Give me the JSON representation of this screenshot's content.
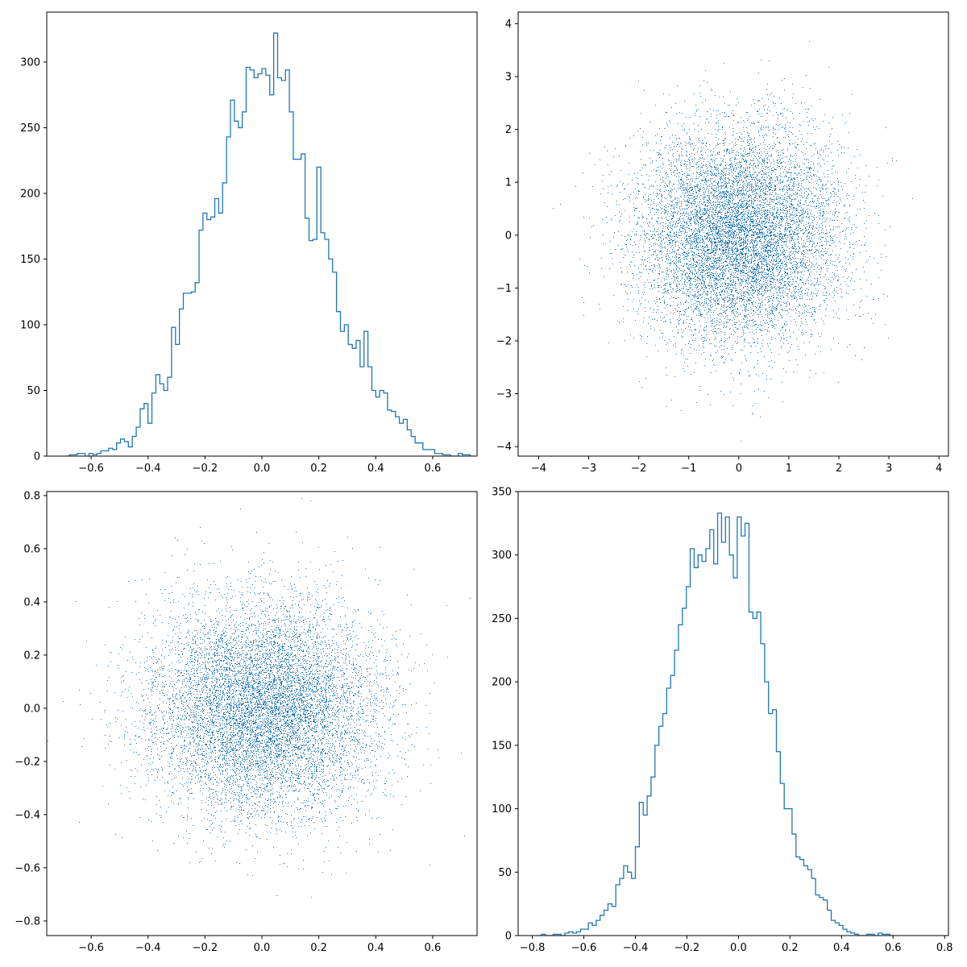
{
  "colors": {
    "line": "#1f77b4",
    "axes": "#000000",
    "background": "#ffffff"
  },
  "chart_data": [
    {
      "type": "histogram",
      "histtype": "step",
      "title": "",
      "xlabel": "",
      "ylabel": "",
      "xlim": [
        -0.756,
        0.756
      ],
      "ylim": [
        0,
        338
      ],
      "xticks": [
        -0.6,
        -0.4,
        -0.2,
        0.0,
        0.2,
        0.4,
        0.6
      ],
      "xtick_labels": [
        "−0.6",
        "−0.4",
        "−0.2",
        "0.0",
        "0.2",
        "0.4",
        "0.6"
      ],
      "yticks": [
        0,
        50,
        100,
        150,
        200,
        250,
        300
      ],
      "ytick_labels": [
        "0",
        "50",
        "100",
        "150",
        "200",
        "250",
        "300"
      ],
      "bin_start": -0.69,
      "bin_width": 0.0138,
      "counts": [
        0,
        1,
        1,
        2,
        2,
        0,
        2,
        1,
        2,
        4,
        4,
        6,
        5,
        10,
        13,
        11,
        7,
        15,
        22,
        36,
        40,
        25,
        48,
        62,
        55,
        50,
        60,
        98,
        85,
        112,
        124,
        124,
        125,
        132,
        172,
        185,
        180,
        182,
        196,
        185,
        208,
        243,
        271,
        255,
        250,
        262,
        296,
        294,
        288,
        291,
        295,
        290,
        275,
        322,
        288,
        286,
        294,
        262,
        226,
        226,
        230,
        181,
        164,
        165,
        220,
        170,
        165,
        150,
        140,
        110,
        95,
        100,
        85,
        82,
        88,
        68,
        95,
        68,
        50,
        45,
        50,
        48,
        35,
        34,
        30,
        25,
        28,
        20,
        15,
        10,
        10,
        5,
        5,
        5,
        2,
        2,
        1,
        1,
        0,
        0,
        2,
        1,
        1,
        0
      ]
    },
    {
      "type": "scatter",
      "marker": "pixel",
      "title": "",
      "xlabel": "",
      "ylabel": "",
      "n_points": 10000,
      "distribution": {
        "x": "normal(0, 1)",
        "y": "normal(0, 1)"
      },
      "xlim": [
        -4.41,
        4.19
      ],
      "ylim": [
        -4.18,
        4.22
      ],
      "xticks": [
        -4,
        -3,
        -2,
        -1,
        0,
        1,
        2,
        3,
        4
      ],
      "xtick_labels": [
        "−4",
        "−3",
        "−2",
        "−1",
        "0",
        "1",
        "2",
        "3",
        "4"
      ],
      "yticks": [
        -4,
        -3,
        -2,
        -1,
        0,
        1,
        2,
        3,
        4
      ],
      "ytick_labels": [
        "−4",
        "−3",
        "−2",
        "−1",
        "0",
        "1",
        "2",
        "3",
        "4"
      ]
    },
    {
      "type": "scatter",
      "marker": "pixel",
      "title": "",
      "xlabel": "",
      "ylabel": "",
      "n_points": 10000,
      "distribution": {
        "x": "normal(0, 0.2)",
        "y": "normal(0, 0.2)"
      },
      "xlim": [
        -0.756,
        0.756
      ],
      "ylim": [
        -0.855,
        0.815
      ],
      "xticks": [
        -0.6,
        -0.4,
        -0.2,
        0.0,
        0.2,
        0.4,
        0.6
      ],
      "xtick_labels": [
        "−0.6",
        "−0.4",
        "−0.2",
        "0.0",
        "0.2",
        "0.4",
        "0.6"
      ],
      "yticks": [
        -0.8,
        -0.6,
        -0.4,
        -0.2,
        0.0,
        0.2,
        0.4,
        0.6,
        0.8
      ],
      "ytick_labels": [
        "−0.8",
        "−0.6",
        "−0.4",
        "−0.2",
        "0.0",
        "0.2",
        "0.4",
        "0.6",
        "0.8"
      ]
    },
    {
      "type": "histogram",
      "histtype": "step",
      "title": "",
      "xlabel": "",
      "ylabel": "",
      "xlim": [
        -0.855,
        0.815
      ],
      "ylim": [
        0,
        350
      ],
      "xticks": [
        -0.8,
        -0.6,
        -0.4,
        -0.2,
        0.0,
        0.2,
        0.4,
        0.6,
        0.8
      ],
      "xtick_labels": [
        "−0.8",
        "−0.6",
        "−0.4",
        "−0.2",
        "0.0",
        "0.2",
        "0.4",
        "0.6",
        "0.8"
      ],
      "yticks": [
        0,
        50,
        100,
        150,
        200,
        250,
        300,
        350
      ],
      "ytick_labels": [
        "0",
        "50",
        "100",
        "150",
        "200",
        "250",
        "300",
        "350"
      ],
      "bin_start": -0.78,
      "bin_width": 0.0152,
      "counts": [
        0,
        1,
        0,
        0,
        1,
        1,
        0,
        2,
        3,
        2,
        3,
        5,
        5,
        10,
        8,
        12,
        16,
        20,
        25,
        23,
        40,
        45,
        55,
        50,
        45,
        70,
        105,
        95,
        110,
        125,
        150,
        165,
        175,
        195,
        205,
        225,
        245,
        258,
        275,
        305,
        290,
        300,
        295,
        305,
        320,
        293,
        333,
        310,
        330,
        300,
        282,
        330,
        315,
        325,
        255,
        250,
        255,
        230,
        200,
        175,
        178,
        145,
        120,
        100,
        100,
        80,
        62,
        60,
        55,
        52,
        45,
        32,
        30,
        28,
        20,
        12,
        10,
        8,
        5,
        3,
        2,
        1,
        0,
        0,
        1,
        1,
        0,
        2,
        1,
        1,
        0
      ]
    }
  ]
}
